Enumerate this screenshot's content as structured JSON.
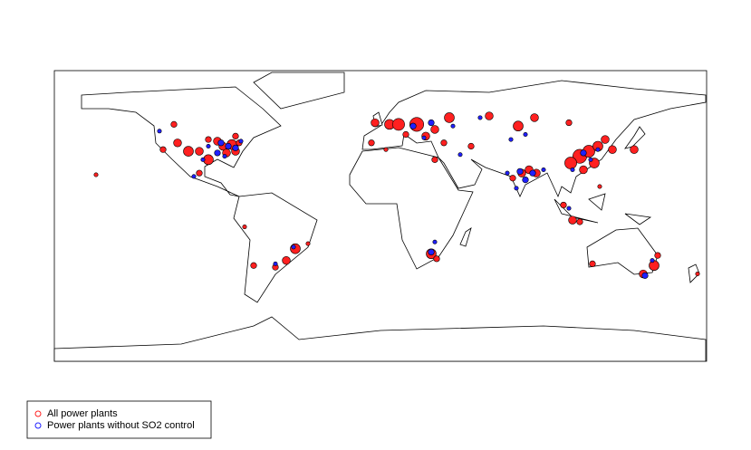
{
  "chart_data": {
    "type": "scatter",
    "xlim": [
      -180,
      180
    ],
    "ylim": [
      -90,
      83
    ],
    "series": [
      {
        "name": "All power plants",
        "color": "#ff2020",
        "x": [
          -87,
          -82,
          -85,
          -95,
          -90,
          -78,
          -100,
          -112,
          -120,
          -106,
          -95,
          -80,
          -114,
          -80,
          -100,
          -157,
          -47,
          -52,
          -58,
          -70,
          -75,
          -40,
          5,
          10,
          20,
          30,
          -3,
          -5,
          14,
          25,
          35,
          38,
          60,
          85,
          76,
          104,
          50,
          78,
          82,
          73,
          86,
          110,
          115,
          118,
          105,
          120,
          112,
          124,
          128,
          140,
          106,
          101,
          110,
          121,
          28,
          31,
          30,
          3,
          151,
          145,
          117,
          153,
          175
        ],
        "y": [
          38,
          39,
          34,
          30,
          41,
          40,
          35,
          40,
          36,
          35,
          42,
          35,
          51,
          44,
          22,
          21,
          -23,
          -30,
          -34,
          -33,
          -10,
          -20,
          51,
          51,
          51,
          48,
          52,
          40,
          45,
          44,
          40,
          55,
          56,
          55,
          50,
          52,
          38,
          22,
          24,
          19,
          22,
          32,
          35,
          28,
          28,
          38,
          24,
          42,
          36,
          36,
          -6,
          3,
          -7,
          14,
          -26,
          -29,
          30,
          36,
          -33,
          -38,
          -32,
          -27,
          -38
        ],
        "size": [
          4,
          5,
          4,
          5,
          4,
          3,
          4,
          4,
          3,
          5,
          3,
          4,
          3,
          3,
          3,
          2,
          5,
          4,
          3,
          3,
          2,
          2,
          5,
          6,
          7,
          4,
          4,
          3,
          3,
          4,
          3,
          5,
          4,
          4,
          5,
          3,
          3,
          4,
          4,
          3,
          4,
          7,
          6,
          5,
          6,
          5,
          4,
          4,
          4,
          4,
          4,
          3,
          3,
          2,
          5,
          3,
          3,
          2,
          5,
          4,
          3,
          3,
          2
        ]
      },
      {
        "name": "Power plants without SO2 control",
        "color": "#2020ff",
        "x": [
          -84,
          -88,
          -80,
          -90,
          -95,
          -77,
          -86,
          -98,
          -103,
          -122,
          -58,
          -48,
          18,
          28,
          40,
          24,
          55,
          80,
          72,
          77,
          80,
          84,
          75,
          70,
          112,
          116,
          106,
          120,
          28,
          30,
          146,
          150,
          104,
          90,
          44
        ],
        "y": [
          38,
          40,
          37,
          34,
          38,
          41,
          32,
          30,
          20,
          47,
          -32,
          -22,
          50,
          52,
          50,
          43,
          55,
          45,
          42,
          23,
          18,
          22,
          13,
          22,
          34,
          30,
          24,
          36,
          -25,
          -19,
          -39,
          -30,
          1,
          24,
          33
        ],
        "size": [
          3,
          3,
          3,
          3,
          2,
          2,
          2,
          2,
          2,
          2,
          2,
          2,
          3,
          3,
          2,
          2,
          2,
          2,
          2,
          3,
          3,
          3,
          2,
          2,
          3,
          2,
          2,
          2,
          3,
          2,
          3,
          2,
          2,
          2,
          2
        ]
      }
    ]
  }
}
